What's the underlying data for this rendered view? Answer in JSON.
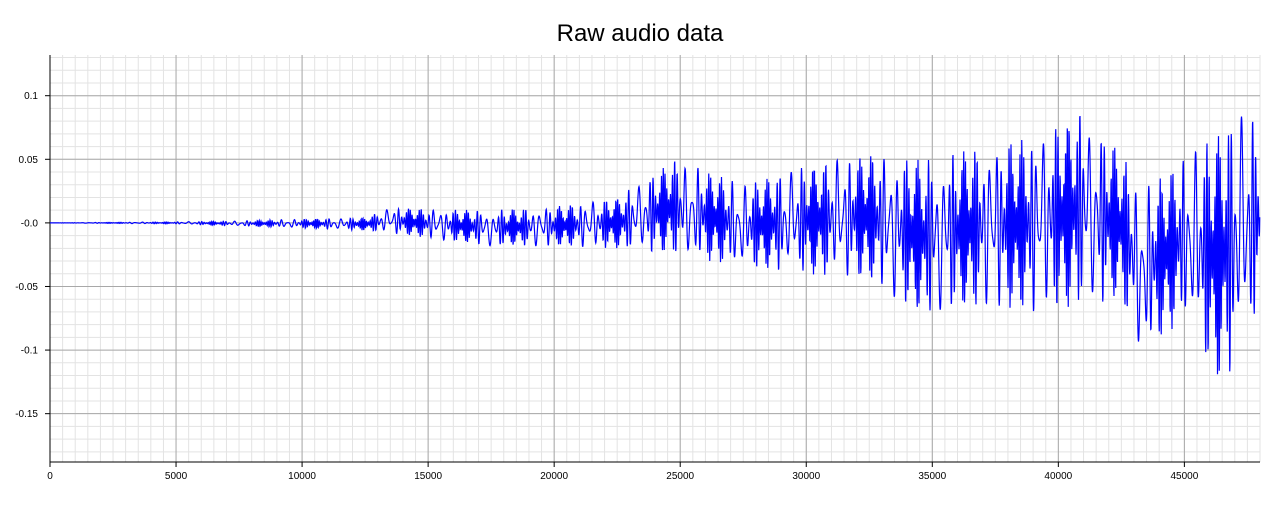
{
  "chart_data": {
    "type": "line",
    "title": "Raw audio data",
    "xlabel": "",
    "ylabel": "",
    "xlim": [
      0,
      48000
    ],
    "ylim": [
      -0.188,
      0.132
    ],
    "x_ticks": [
      0,
      5000,
      10000,
      15000,
      20000,
      25000,
      30000,
      35000,
      40000,
      45000
    ],
    "y_ticks": [
      0.1,
      0.05,
      0.0,
      -0.05,
      -0.1,
      -0.15
    ],
    "y_tick_labels": [
      "0.1",
      "0.05",
      "-0.0",
      "-0.05",
      "-0.1",
      "-0.15"
    ],
    "grid": true,
    "line_color": "#0000ff",
    "series": [
      {
        "name": "",
        "samples_per_segment": 40,
        "x": [
          0,
          2800,
          5000,
          7500,
          10000,
          12500,
          13500,
          15000,
          17500,
          20000,
          22500,
          24800,
          27500,
          30000,
          32500,
          34500,
          37000,
          39000,
          41000,
          42500,
          43300,
          45000,
          46300,
          47000,
          48000
        ],
        "upper": [
          0,
          0.0005,
          0.0008,
          0.0015,
          0.003,
          0.004,
          0.012,
          0.011,
          0.01,
          0.013,
          0.02,
          0.05,
          0.03,
          0.045,
          0.055,
          0.05,
          0.06,
          0.068,
          0.088,
          0.055,
          0.025,
          0.05,
          0.07,
          0.085,
          0.08
        ],
        "lower": [
          0,
          -0.0005,
          -0.0008,
          -0.0025,
          -0.004,
          -0.006,
          -0.008,
          -0.012,
          -0.018,
          -0.018,
          -0.02,
          -0.025,
          -0.035,
          -0.04,
          -0.045,
          -0.072,
          -0.065,
          -0.07,
          -0.065,
          -0.06,
          -0.105,
          -0.075,
          -0.125,
          -0.115,
          -0.068
        ]
      }
    ]
  }
}
